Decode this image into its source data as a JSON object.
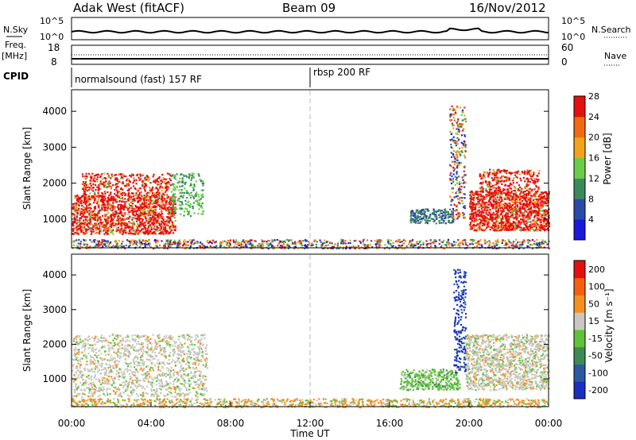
{
  "header": {
    "radar": "Adak West (fitACF)",
    "beam": "Beam 09",
    "date": "16/Nov/2012"
  },
  "top_strip": {
    "left_label": "N.Sky",
    "left_ticks": [
      "10^5",
      "10^0"
    ],
    "right_ticks": [
      "10^5",
      "10^0"
    ],
    "right_label": "N.Search"
  },
  "freq_strip": {
    "left_label_1": "Freq.",
    "left_label_2": "[MHz]",
    "left_ticks": [
      "18",
      "8"
    ],
    "right_ticks": [
      "60",
      "0"
    ],
    "right_label": "Nave"
  },
  "cpid_strip": {
    "label": "CPID",
    "segments": [
      "normalsound (fast) 157 RF",
      "rbsp 200 RF"
    ]
  },
  "chart_data": [
    {
      "type": "heatmap",
      "name": "power",
      "ylabel": "Slant Range [km]",
      "yticks": [
        1000,
        2000,
        3000,
        4000
      ],
      "ylim": [
        200,
        4600
      ],
      "xlim": [
        0,
        24
      ],
      "colorbar": {
        "label": "Power [dB]",
        "ticks": [
          "4",
          "8",
          "12",
          "16",
          "20",
          "24",
          "28"
        ],
        "colors": [
          "#1a1adc",
          "#2a4aa8",
          "#3c8a5c",
          "#6acd4a",
          "#f2a31a",
          "#f26a10",
          "#e51010"
        ]
      }
    },
    {
      "type": "heatmap",
      "name": "velocity",
      "ylabel": "Slant Range [km]",
      "yticks": [
        1000,
        2000,
        3000,
        4000
      ],
      "ylim": [
        200,
        4600
      ],
      "xlim": [
        0,
        24
      ],
      "colorbar": {
        "label": "Velocity [m s⁻¹]",
        "ticks": [
          "200",
          "100",
          "50",
          "15",
          "-15",
          "-50",
          "-100",
          "-200"
        ],
        "colors": [
          "#1a2fbf",
          "#2a5aa0",
          "#3d8a55",
          "#5fc23a",
          "#c8c8c0",
          "#f59020",
          "#f56010",
          "#e41010"
        ]
      }
    }
  ],
  "xaxis": {
    "ticks": [
      "00:00",
      "04:00",
      "08:00",
      "12:00",
      "16:00",
      "20:00",
      "00:00"
    ],
    "label": "Time UT"
  }
}
